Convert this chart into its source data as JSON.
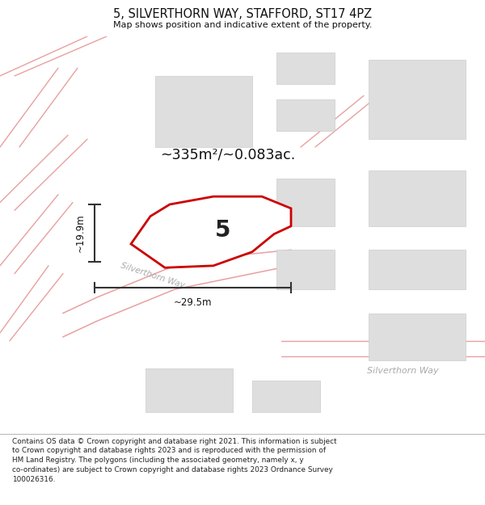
{
  "title": "5, SILVERTHORN WAY, STAFFORD, ST17 4PZ",
  "subtitle": "Map shows position and indicative extent of the property.",
  "footer": "Contains OS data © Crown copyright and database right 2021. This information is subject to Crown copyright and database rights 2023 and is reproduced with the permission of HM Land Registry. The polygons (including the associated geometry, namely x, y co-ordinates) are subject to Crown copyright and database rights 2023 Ordnance Survey 100026316.",
  "area_label": "~335m²/~0.083ac.",
  "plot_number": "5",
  "dim_width": "~29.5m",
  "dim_height": "~19.9m",
  "road_label_diag": "Silverthorn Way",
  "road_label_horiz": "Silverthorn Way",
  "bg_color": "#f2f2f2",
  "plot_edge": "#cc0000",
  "plot_color": "#e8e8e8",
  "dim_color": "#333333",
  "text_color": "#111111",
  "road_color": "#e8a0a0",
  "building_color": "#dedede",
  "building_edge": "#cccccc",
  "pink_line_color": "#e8a0a0",
  "note_color": "#aaaaaa"
}
